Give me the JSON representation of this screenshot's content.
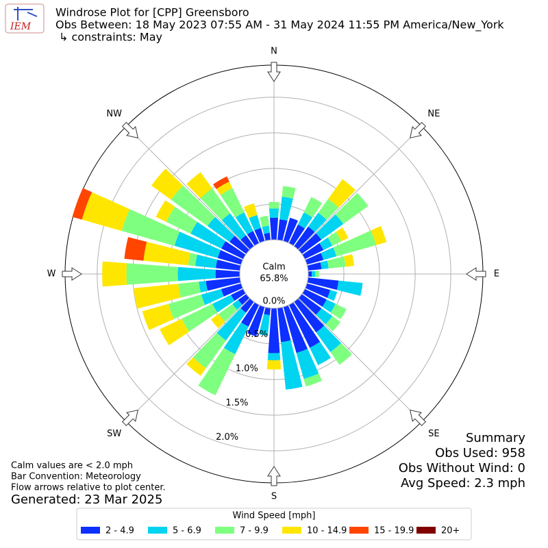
{
  "chart_data": {
    "type": "windrose",
    "logo_text": "IEM",
    "title": "Windrose Plot for [CPP] Greensboro",
    "subtitle": "Obs Between: 18 May 2023 07:55 AM - 31 May 2024 11:55 PM America/New_York",
    "constraints": "↳ constraints: May",
    "calm_label": "Calm",
    "calm_value": {
      "value": 65.8,
      "label": "65.8%"
    },
    "directions": [
      0,
      10,
      20,
      30,
      40,
      50,
      60,
      70,
      80,
      90,
      100,
      110,
      120,
      130,
      140,
      150,
      160,
      170,
      180,
      190,
      200,
      210,
      220,
      230,
      240,
      250,
      260,
      270,
      280,
      290,
      300,
      310,
      320,
      330,
      340,
      350
    ],
    "compass": [
      {
        "value": 0,
        "label": "N"
      },
      {
        "value": 45,
        "label": "NE"
      },
      {
        "value": 90,
        "label": "E"
      },
      {
        "value": 135,
        "label": "SE"
      },
      {
        "value": 180,
        "label": "S"
      },
      {
        "value": 225,
        "label": "SW"
      },
      {
        "value": 270,
        "label": "W"
      },
      {
        "value": 315,
        "label": "NW"
      }
    ],
    "rlim": [
      0,
      2.45
    ],
    "rticks": [
      {
        "value": 0,
        "label": "0.0%"
      },
      {
        "value": 0.5,
        "label": "0.5%"
      },
      {
        "value": 1.0,
        "label": "1.0%"
      },
      {
        "value": 1.5,
        "label": "1.5%"
      },
      {
        "value": 2.0,
        "label": "2.0%"
      }
    ],
    "legend_title": "Wind Speed [mph]",
    "series": [
      {
        "name": "2 - 4.9",
        "color": "#0d2fff",
        "values": [
          0.31,
          0.29,
          0.34,
          0.29,
          0.34,
          0.34,
          0.29,
          0.24,
          0.19,
          0.05,
          0.43,
          0.34,
          0.34,
          0.34,
          0.53,
          0.67,
          0.67,
          0.48,
          0.63,
          0.1,
          0.43,
          0.34,
          0.19,
          0.14,
          0.19,
          0.29,
          0.48,
          0.34,
          0.34,
          0.34,
          0.34,
          0.29,
          0.19,
          0.19,
          0.19,
          0.1
        ]
      },
      {
        "name": "5 - 6.9",
        "color": "#00d4f0",
        "values": [
          0.13,
          0.32,
          0,
          0.19,
          0.24,
          0.38,
          0.14,
          0.19,
          0.1,
          0.05,
          0.34,
          0.1,
          0.14,
          0.19,
          0.34,
          0.27,
          0.38,
          0.67,
          0.1,
          0.29,
          0,
          0.43,
          0.48,
          0.1,
          0.29,
          0.29,
          0.1,
          0.53,
          0.29,
          0.63,
          0.48,
          0.38,
          0.38,
          0.29,
          0.19,
          0.1
        ]
      },
      {
        "name": "7 - 9.9",
        "color": "#7fff7f",
        "values": [
          0.09,
          0.15,
          0,
          0.24,
          0.24,
          0.43,
          0.14,
          0.58,
          0.24,
          0.05,
          0,
          0,
          0.17,
          0.14,
          0.22,
          0,
          0.11,
          0,
          0,
          0,
          0,
          0.64,
          0.48,
          0.24,
          0.48,
          0.48,
          0.29,
          0.72,
          0.1,
          0.77,
          0.38,
          0.63,
          0.43,
          0.38,
          0,
          0.14
        ]
      },
      {
        "name": "10 - 14.9",
        "color": "#ffe600",
        "values": [
          0,
          0,
          0,
          0,
          0.34,
          0,
          0.11,
          0.15,
          0.12,
          0,
          0,
          0,
          0,
          0,
          0,
          0,
          0,
          0,
          0.13,
          0,
          0,
          0,
          0.13,
          0.13,
          0.34,
          0.38,
          0.63,
          0.34,
          0.63,
          0.58,
          0.16,
          0.34,
          0.28,
          0.1,
          0.17,
          0
        ]
      },
      {
        "name": "15 - 19.9",
        "color": "#ff4500",
        "values": [
          0,
          0,
          0,
          0,
          0,
          0,
          0,
          0,
          0,
          0,
          0,
          0,
          0,
          0,
          0,
          0,
          0,
          0,
          0,
          0,
          0,
          0,
          0,
          0,
          0,
          0,
          0,
          0,
          0.27,
          0.14,
          0,
          0,
          0,
          0.08,
          0,
          0
        ]
      },
      {
        "name": "20+",
        "color": "#800000",
        "values": [
          0,
          0,
          0,
          0,
          0,
          0,
          0,
          0,
          0,
          0,
          0,
          0,
          0,
          0,
          0,
          0,
          0,
          0,
          0,
          0,
          0,
          0,
          0,
          0,
          0,
          0,
          0,
          0,
          0,
          0,
          0,
          0,
          0,
          0,
          0,
          0
        ]
      }
    ],
    "summary": [
      "Summary",
      "Obs Used: 958",
      "Obs Without Wind: 0",
      "Avg Speed: 2.3 mph"
    ],
    "notes": [
      "Calm values are < 2.0 mph",
      "Bar Convention: Meteorology",
      "Flow arrows relative to plot center."
    ],
    "generated": "Generated: 23 Mar 2025"
  }
}
